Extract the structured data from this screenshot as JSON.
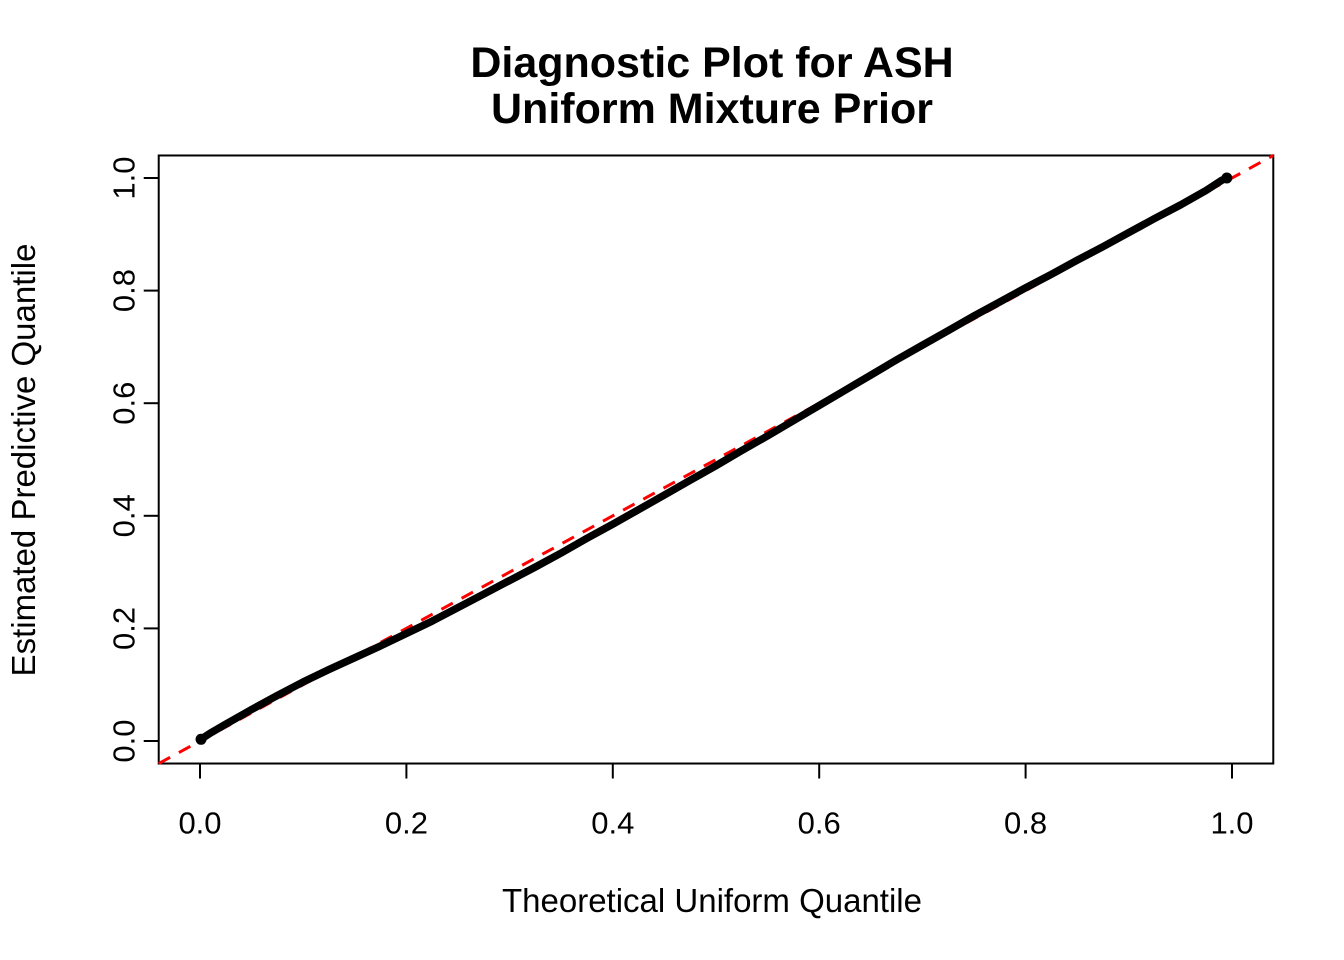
{
  "title": {
    "line1": "Diagnostic Plot for ASH",
    "line2": "Uniform Mixture Prior"
  },
  "axes": {
    "x_label": "Theoretical Uniform Quantile",
    "y_label": "Estimated Predictive Quantile"
  },
  "colors": {
    "curve": "#000000",
    "reference_line": "#FF0000",
    "axis": "#000000",
    "background": "#FFFFFF"
  },
  "chart_data": {
    "type": "scatter",
    "title": "Diagnostic Plot for ASH\nUniform Mixture Prior",
    "xlabel": "Theoretical Uniform Quantile",
    "ylabel": "Estimated Predictive Quantile",
    "xlim": [
      -0.04,
      1.04
    ],
    "ylim": [
      -0.04,
      1.04
    ],
    "x_ticks": [
      0.0,
      0.2,
      0.4,
      0.6,
      0.8,
      1.0
    ],
    "y_ticks": [
      0.0,
      0.2,
      0.4,
      0.6,
      0.8,
      1.0
    ],
    "grid": false,
    "legend": "none",
    "reference_line": {
      "name": "y-equals-x",
      "style": "dashed",
      "color": "#FF0000",
      "from": [
        -0.04,
        -0.04
      ],
      "to": [
        1.04,
        1.04
      ]
    },
    "series": [
      {
        "name": "estimated-vs-theoretical-quantile",
        "marker": "filled-point",
        "color": "#000000",
        "points": [
          [
            0.001,
            0.003
          ],
          [
            0.01,
            0.014
          ],
          [
            0.025,
            0.03
          ],
          [
            0.05,
            0.056
          ],
          [
            0.075,
            0.081
          ],
          [
            0.1,
            0.105
          ],
          [
            0.125,
            0.127
          ],
          [
            0.15,
            0.148
          ],
          [
            0.175,
            0.169
          ],
          [
            0.2,
            0.191
          ],
          [
            0.225,
            0.213
          ],
          [
            0.25,
            0.237
          ],
          [
            0.275,
            0.261
          ],
          [
            0.3,
            0.285
          ],
          [
            0.325,
            0.309
          ],
          [
            0.35,
            0.334
          ],
          [
            0.375,
            0.36
          ],
          [
            0.4,
            0.385
          ],
          [
            0.425,
            0.411
          ],
          [
            0.45,
            0.437
          ],
          [
            0.475,
            0.463
          ],
          [
            0.5,
            0.489
          ],
          [
            0.525,
            0.516
          ],
          [
            0.55,
            0.542
          ],
          [
            0.575,
            0.569
          ],
          [
            0.6,
            0.596
          ],
          [
            0.625,
            0.623
          ],
          [
            0.65,
            0.65
          ],
          [
            0.675,
            0.677
          ],
          [
            0.7,
            0.703
          ],
          [
            0.725,
            0.729
          ],
          [
            0.75,
            0.755
          ],
          [
            0.775,
            0.78
          ],
          [
            0.8,
            0.805
          ],
          [
            0.825,
            0.829
          ],
          [
            0.85,
            0.854
          ],
          [
            0.875,
            0.878
          ],
          [
            0.9,
            0.903
          ],
          [
            0.925,
            0.928
          ],
          [
            0.95,
            0.952
          ],
          [
            0.975,
            0.978
          ],
          [
            0.99,
            0.996
          ],
          [
            0.995,
            1.0
          ]
        ]
      }
    ]
  }
}
